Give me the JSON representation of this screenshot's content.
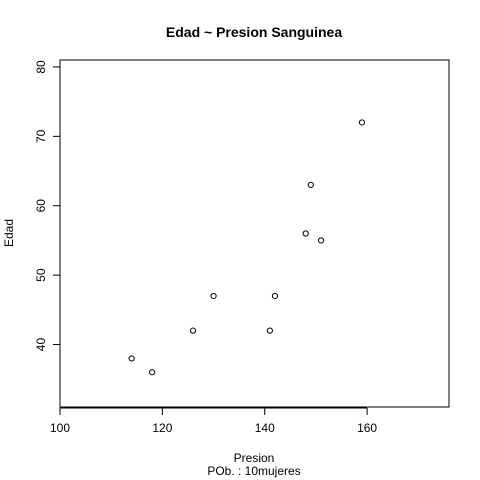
{
  "chart_data": {
    "type": "scatter",
    "title": "Edad ~ Presion Sanguinea",
    "xlabel": "Presion",
    "ylabel": "Edad",
    "subtitle": "POb. : 10mujeres",
    "xlim": [
      100,
      176
    ],
    "ylim": [
      31,
      81
    ],
    "xticks": [
      100,
      120,
      140,
      160
    ],
    "yticks": [
      40,
      50,
      60,
      70,
      80
    ],
    "grid": false,
    "legend": "none",
    "point_shape": "open-circle",
    "color": "#000000",
    "x": [
      114,
      118,
      126,
      130,
      141,
      142,
      148,
      149,
      151,
      159
    ],
    "y": [
      38,
      36,
      42,
      47,
      42,
      47,
      56,
      63,
      55,
      72
    ]
  }
}
